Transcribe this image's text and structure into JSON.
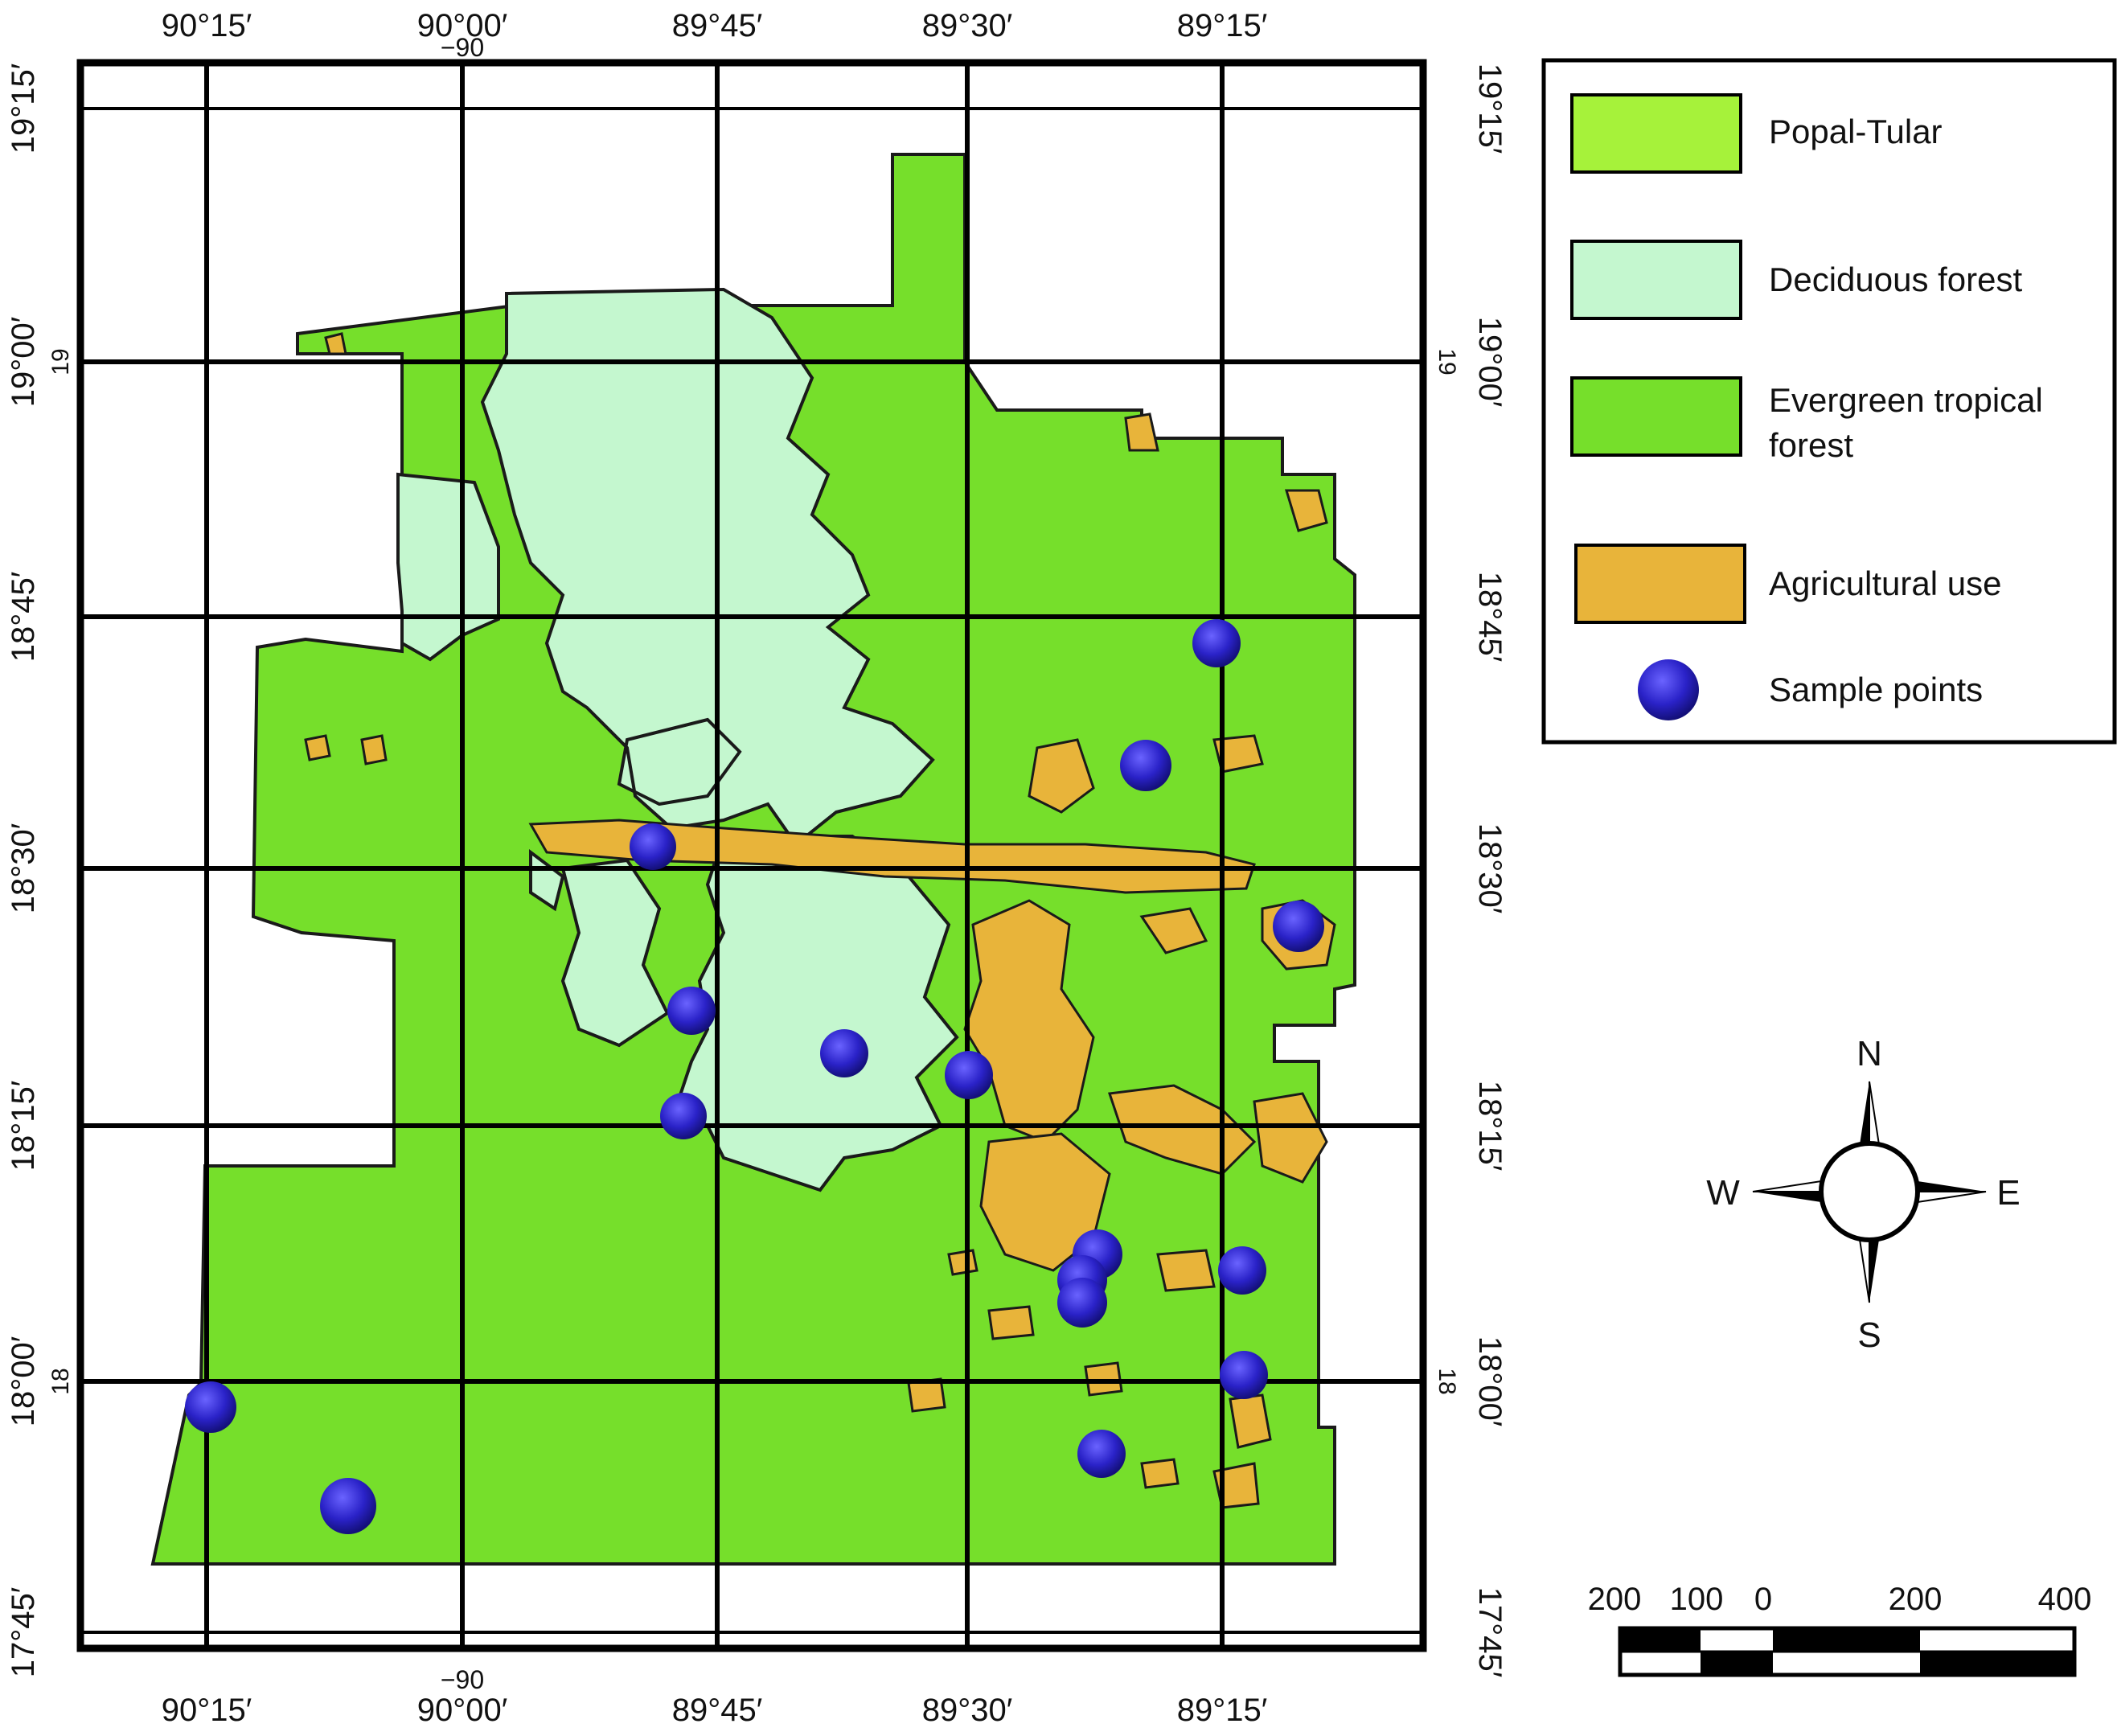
{
  "map": {
    "lon_labels": [
      "90°15′",
      "90°00′",
      "89°45′",
      "89°30′",
      "89°15′"
    ],
    "lat_labels": [
      "19°15′",
      "19°00′",
      "18°45′",
      "18°30′",
      "18°15′",
      "18°00′",
      "17°45′"
    ],
    "lon_short_top": "−90",
    "lon_short_bottom": "−90",
    "lat_short_left_19": "19",
    "lat_short_left_18": "18",
    "lat_short_right_19": "19",
    "lat_short_right_18": "18"
  },
  "legend": {
    "items": [
      {
        "label": "Popal-Tular",
        "color": "#a6f23a"
      },
      {
        "label": "Deciduous forest",
        "color": "#c4f7cf"
      },
      {
        "label": "Evergreen tropical forest",
        "label_line1": "Evergreen tropical",
        "label_line2": "forest",
        "color": "#76df2b"
      },
      {
        "label": "Agricultural use",
        "color": "#e8b43a"
      },
      {
        "label": "Sample points",
        "color": "#2a22c8"
      }
    ]
  },
  "compass": {
    "n": "N",
    "s": "S",
    "e": "E",
    "w": "W"
  },
  "scale_bar": {
    "labels": [
      "200",
      "100",
      "0",
      "200",
      "400"
    ]
  },
  "colors": {
    "evergreen": "#76df2b",
    "deciduous": "#c4f7cf",
    "agricultural": "#e8b43a",
    "sample": "#2a22c8",
    "grid": "#000000"
  }
}
